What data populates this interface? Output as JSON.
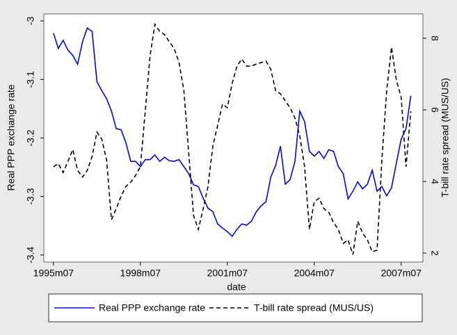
{
  "chart_data": {
    "type": "line",
    "x": [
      "1995m07",
      "1995m09",
      "1995m11",
      "1996m01",
      "1996m03",
      "1996m05",
      "1996m07",
      "1996m09",
      "1996m11",
      "1997m01",
      "1997m03",
      "1997m05",
      "1997m07",
      "1997m09",
      "1997m11",
      "1998m01",
      "1998m03",
      "1998m05",
      "1998m07",
      "1998m09",
      "1998m11",
      "1999m01",
      "1999m03",
      "1999m05",
      "1999m07",
      "1999m09",
      "1999m11",
      "2000m01",
      "2000m03",
      "2000m05",
      "2000m07",
      "2000m09",
      "2000m11",
      "2001m01",
      "2001m03",
      "2001m05",
      "2001m07",
      "2001m09",
      "2001m11",
      "2002m01",
      "2002m03",
      "2002m05",
      "2002m07",
      "2002m09",
      "2002m11",
      "2003m01",
      "2003m03",
      "2003m05",
      "2003m07",
      "2003m09",
      "2003m11",
      "2004m01",
      "2004m03",
      "2004m05",
      "2004m07",
      "2004m09",
      "2004m11",
      "2005m01",
      "2005m03",
      "2005m05",
      "2005m07",
      "2005m09",
      "2005m11",
      "2006m01",
      "2006m03",
      "2006m05",
      "2006m07",
      "2006m09",
      "2006m11",
      "2007m01",
      "2007m03",
      "2007m05",
      "2007m07",
      "2007m09",
      "2007m11"
    ],
    "series": [
      {
        "name": "Real PPP exchange rate",
        "color": "#0000ff",
        "dash": "solid",
        "axis": "y",
        "values": [
          -3.021,
          -3.047,
          -3.033,
          -3.05,
          -3.059,
          -3.074,
          -3.036,
          -3.012,
          -3.018,
          -3.104,
          -3.119,
          -3.133,
          -3.154,
          -3.184,
          -3.186,
          -3.208,
          -3.24,
          -3.24,
          -3.249,
          -3.237,
          -3.237,
          -3.229,
          -3.24,
          -3.233,
          -3.239,
          -3.24,
          -3.237,
          -3.249,
          -3.261,
          -3.28,
          -3.283,
          -3.303,
          -3.32,
          -3.326,
          -3.347,
          -3.354,
          -3.36,
          -3.368,
          -3.356,
          -3.347,
          -3.349,
          -3.342,
          -3.326,
          -3.316,
          -3.309,
          -3.267,
          -3.247,
          -3.214,
          -3.279,
          -3.271,
          -3.24,
          -3.154,
          -3.172,
          -3.223,
          -3.231,
          -3.223,
          -3.235,
          -3.22,
          -3.223,
          -3.249,
          -3.261,
          -3.304,
          -3.291,
          -3.275,
          -3.287,
          -3.279,
          -3.255,
          -3.291,
          -3.283,
          -3.299,
          -3.285,
          -3.243,
          -3.202,
          -3.184,
          -3.128
        ]
      },
      {
        "name": "T-bill rate spread (MUS/US)",
        "color": "#000000",
        "dash": "dashed",
        "axis": "y2",
        "values": [
          4.41,
          4.5,
          4.25,
          4.56,
          4.89,
          4.31,
          4.12,
          4.31,
          4.7,
          5.38,
          5.18,
          4.6,
          2.93,
          3.24,
          3.59,
          3.86,
          3.98,
          4.17,
          4.41,
          5.96,
          7.51,
          8.39,
          8.19,
          8.1,
          7.9,
          7.71,
          7.32,
          6.54,
          4.8,
          3.05,
          2.66,
          3.24,
          3.86,
          4.99,
          5.57,
          6.16,
          6.06,
          6.74,
          7.22,
          7.42,
          7.22,
          7.22,
          7.28,
          7.32,
          7.36,
          7.13,
          6.54,
          6.45,
          6.25,
          6.06,
          5.77,
          5.28,
          4.41,
          2.66,
          3.44,
          3.53,
          3.24,
          3.14,
          2.85,
          2.66,
          2.27,
          2.37,
          1.96,
          2.89,
          2.56,
          2.37,
          2.04,
          2.08,
          4.6,
          6.54,
          7.75,
          6.83,
          6.35,
          4.41,
          5.96
        ]
      }
    ],
    "xlim": [
      "1995m03",
      "2008m04"
    ],
    "xticks": [
      "1995m07",
      "1998m07",
      "2001m07",
      "2004m07",
      "2007m07"
    ],
    "ylim": [
      -3.412,
      -2.988
    ],
    "yticks": [
      -3.4,
      -3.3,
      -3.2,
      -3.1,
      -3
    ],
    "y2lim": [
      1.75,
      8.68
    ],
    "y2ticks": [
      2,
      4,
      6,
      8
    ],
    "xlabel": "date",
    "ylabel": "Real PPP exchange rate",
    "y2label": "T-bill rate spread (MUS/US)",
    "legend": "bottom"
  }
}
